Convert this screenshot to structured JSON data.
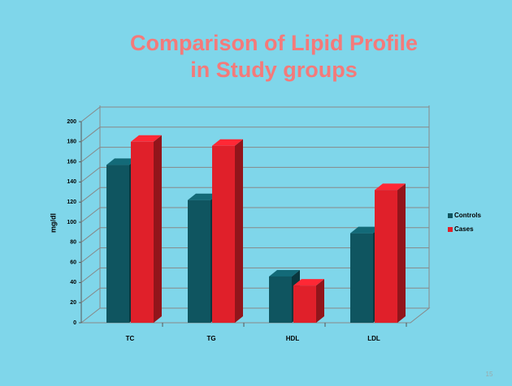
{
  "chart_data": {
    "type": "bar3d",
    "title": [
      "Comparison of Lipid Profile",
      "in Study groups"
    ],
    "ylabel": "mg/dl",
    "categories": [
      "TC",
      "TG",
      "HDL",
      "LDL"
    ],
    "series": [
      {
        "name": "Controls",
        "color": "#0f5560",
        "values": [
          157,
          122,
          46,
          89
        ]
      },
      {
        "name": "Cases",
        "color": "#e0202a",
        "values": [
          180,
          176,
          37,
          132
        ]
      }
    ],
    "ylim": [
      0,
      200
    ],
    "yticks": [
      0,
      20,
      40,
      60,
      80,
      100,
      120,
      140,
      160,
      180,
      200
    ],
    "grid": true,
    "legend": "right",
    "page_number": "15"
  }
}
